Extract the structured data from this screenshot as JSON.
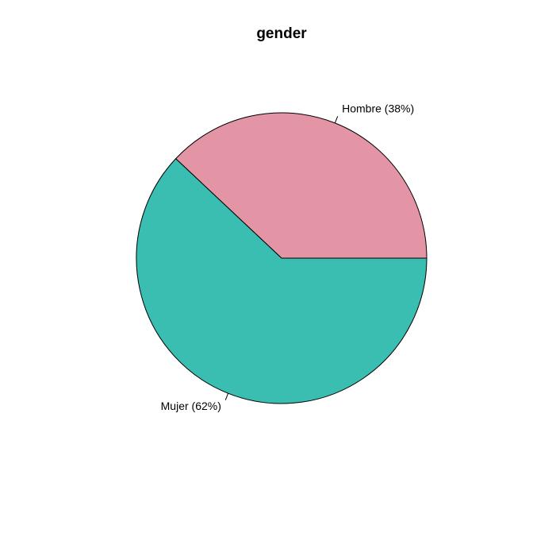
{
  "chart_data": {
    "type": "pie",
    "title": "gender",
    "slices": [
      {
        "label": "Hombre (38%)",
        "category": "Hombre",
        "value": 38,
        "color": "#E495A5"
      },
      {
        "label": "Mujer (62%)",
        "category": "Mujer",
        "value": 62,
        "color": "#39BEB1"
      }
    ],
    "start_angle": "3 o'clock",
    "direction": "counterclockwise",
    "slice_border_color": "#000000",
    "background": "#ffffff"
  }
}
